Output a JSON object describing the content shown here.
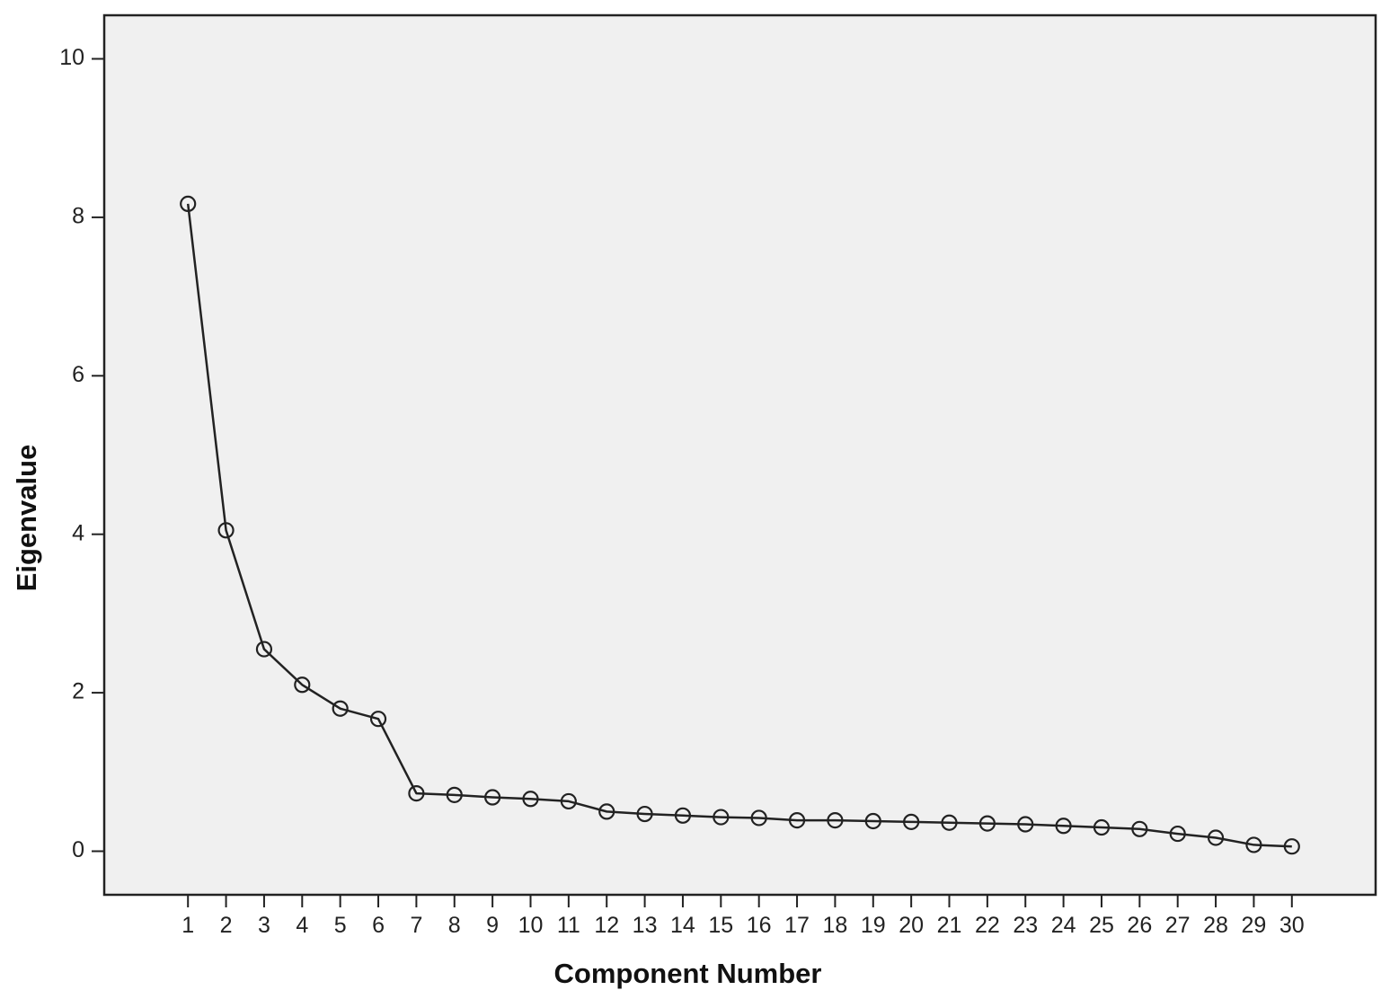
{
  "chart_data": {
    "type": "line",
    "title": "",
    "xlabel": "Component Number",
    "ylabel": "Eigenvalue",
    "x": [
      1,
      2,
      3,
      4,
      5,
      6,
      7,
      8,
      9,
      10,
      11,
      12,
      13,
      14,
      15,
      16,
      17,
      18,
      19,
      20,
      21,
      22,
      23,
      24,
      25,
      26,
      27,
      28,
      29,
      30
    ],
    "series": [
      {
        "values": [
          8.17,
          4.05,
          2.55,
          2.1,
          1.8,
          1.67,
          0.73,
          0.71,
          0.68,
          0.66,
          0.63,
          0.5,
          0.47,
          0.45,
          0.43,
          0.42,
          0.39,
          0.39,
          0.38,
          0.37,
          0.36,
          0.35,
          0.34,
          0.32,
          0.3,
          0.28,
          0.22,
          0.17,
          0.08,
          0.06
        ]
      }
    ],
    "xlim": [
      -1.2,
      32.2
    ],
    "ylim": [
      -0.55,
      10.55
    ],
    "y_ticks": [
      0,
      2,
      4,
      6,
      8,
      10
    ],
    "y_tick_labels": [
      "0",
      "2",
      "4",
      "6",
      "8",
      "10"
    ],
    "x_tick_labels": [
      "1",
      "2",
      "3",
      "4",
      "5",
      "6",
      "7",
      "8",
      "9",
      "10",
      "11",
      "12",
      "13",
      "14",
      "15",
      "16",
      "17",
      "18",
      "19",
      "20",
      "21",
      "22",
      "23",
      "24",
      "25",
      "26",
      "27",
      "28",
      "29",
      "30"
    ],
    "grid": false,
    "legend": "none",
    "marker": "open-circle",
    "colors": {
      "plot_background": "#f0f0f0",
      "line": "#222222",
      "axis": "#222222"
    }
  }
}
